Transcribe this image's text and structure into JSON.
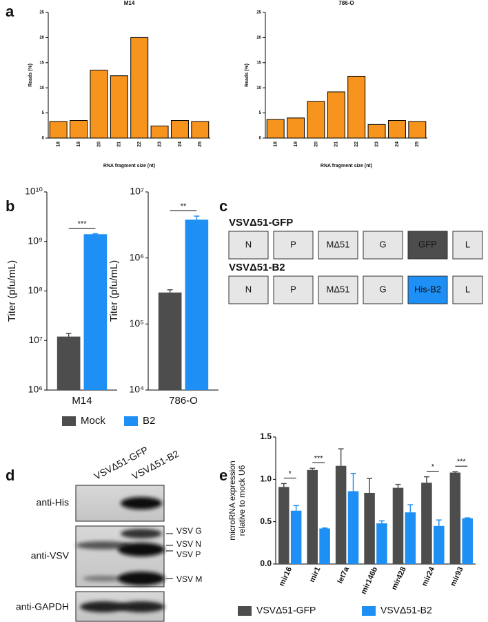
{
  "panel_labels": [
    "a",
    "b",
    "c",
    "d",
    "e"
  ],
  "chart_data": [
    {
      "type": "bar",
      "title": "M14",
      "x_label": "RNA fragment size (nt)",
      "y_label": [
        "Reads (%)"
      ],
      "categories": [
        "18",
        "19",
        "20",
        "21",
        "22",
        "23",
        "24",
        "25"
      ],
      "series": [
        {
          "color": "#f7941d",
          "values": [
            3.3,
            3.5,
            13.5,
            12.4,
            20,
            2.4,
            3.5,
            3.3
          ]
        }
      ],
      "ylim": [
        0,
        25
      ],
      "yticks": [
        0,
        5,
        10,
        15,
        20,
        25
      ]
    },
    {
      "type": "bar",
      "title": "786-O",
      "x_label": "RNA fragment size (nt)",
      "y_label": [
        "Reads (%)"
      ],
      "categories": [
        "18",
        "19",
        "20",
        "21",
        "22",
        "23",
        "24",
        "25"
      ],
      "series": [
        {
          "color": "#f7941d",
          "values": [
            3.7,
            4.0,
            7.3,
            9.2,
            12.3,
            2.7,
            3.5,
            3.3
          ]
        }
      ],
      "ylim": [
        0,
        25
      ],
      "yticks": [
        0,
        5,
        10,
        15,
        20,
        25
      ]
    },
    {
      "type": "bar",
      "y_label": [
        "Titer (pfu/mL)"
      ],
      "log_y": true,
      "categories": [
        "M14"
      ],
      "series": [
        {
          "name": "Mock",
          "color": "#4d4d4d",
          "values": [
            12000000
          ],
          "errors": [
            2000000
          ]
        },
        {
          "name": "B2",
          "color": "#1e8ff5",
          "values": [
            1400000000
          ],
          "errors": [
            30000000
          ]
        }
      ],
      "ylim": [
        1000000,
        10000000000
      ],
      "yticks": [
        {
          "value": 1000000,
          "label": "10⁶"
        },
        {
          "value": 10000000,
          "label": "10⁷"
        },
        {
          "value": 100000000,
          "label": "10⁸"
        },
        {
          "value": 1000000000,
          "label": "10⁹"
        },
        {
          "value": 10000000000,
          "label": "10¹⁰"
        }
      ],
      "significance": "***",
      "legend": true
    },
    {
      "type": "bar",
      "y_label": [
        "Titer (pfu/mL)"
      ],
      "log_y": true,
      "categories": [
        "786-O"
      ],
      "series": [
        {
          "color": "#4d4d4d",
          "values": [
            300000
          ],
          "errors": [
            30000
          ]
        },
        {
          "color": "#1e8ff5",
          "values": [
            3800000
          ],
          "errors": [
            500000
          ]
        }
      ],
      "ylim": [
        10000,
        10000000
      ],
      "yticks": [
        {
          "value": 10000,
          "label": "10⁴"
        },
        {
          "value": 100000,
          "label": "10⁵"
        },
        {
          "value": 1000000,
          "label": "10⁶"
        },
        {
          "value": 10000000,
          "label": "10⁷"
        }
      ],
      "significance": "**"
    },
    {
      "type": "bar",
      "y_label": [
        "microRNA expression",
        "relative to mock U6"
      ],
      "categories": [
        "mir16",
        "mir1",
        "let7a",
        "mir146b",
        "mir428",
        "mir24",
        "mir93"
      ],
      "series": [
        {
          "name": "VSVΔ51-GFP",
          "color": "#4d4d4d",
          "values": [
            0.91,
            1.11,
            1.16,
            0.84,
            0.9,
            0.96,
            1.08
          ],
          "errors": [
            0.04,
            0.02,
            0.2,
            0.17,
            0.04,
            0.07,
            0.01
          ]
        },
        {
          "name": "VSVΔ51-B2",
          "color": "#1e8ff5",
          "values": [
            0.63,
            0.42,
            0.86,
            0.48,
            0.61,
            0.45,
            0.54
          ],
          "errors": [
            0.06,
            0.005,
            0.21,
            0.03,
            0.09,
            0.07,
            0.005
          ]
        }
      ],
      "ylim": [
        0,
        1.5
      ],
      "yticks": [
        {
          "value": 0,
          "label": "0.0"
        },
        0.5,
        {
          "value": 1,
          "label": "1.0"
        },
        1.5
      ],
      "significance": [
        {
          "category": "mir16",
          "text": "*"
        },
        {
          "category": "mir1",
          "text": "***"
        },
        {
          "category": "mir24",
          "text": "*"
        },
        {
          "category": "mir93",
          "text": "***"
        }
      ],
      "legend": true
    }
  ],
  "diagram": {
    "constructs": [
      {
        "name": "VSVΔ51-GFP",
        "genes": [
          {
            "label": "N"
          },
          {
            "label": "P"
          },
          {
            "label": "MΔ51"
          },
          {
            "label": "G"
          },
          {
            "label": "GFP",
            "fill": "#4d4d4d"
          },
          {
            "label": "L"
          }
        ]
      },
      {
        "name": "VSVΔ51-B2",
        "genes": [
          {
            "label": "N"
          },
          {
            "label": "P"
          },
          {
            "label": "MΔ51"
          },
          {
            "label": "G"
          },
          {
            "label": "His-B2",
            "fill": "#1e8ff5"
          },
          {
            "label": "L"
          }
        ]
      }
    ]
  },
  "blot": {
    "lanes": [
      "VSVΔ51-GFP",
      "VSVΔ51-B2"
    ],
    "antibodies": [
      "anti-His",
      "anti-VSV",
      "anti-GAPDH"
    ],
    "band_labels": [
      "VSV G",
      "VSV N",
      "VSV P",
      "VSV M"
    ]
  }
}
